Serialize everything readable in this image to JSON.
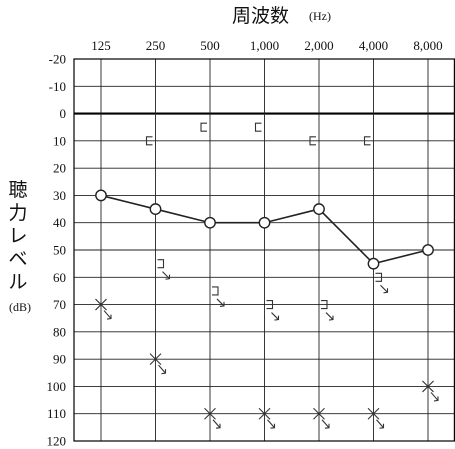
{
  "chart_data": {
    "type": "line",
    "title": "周波数",
    "title_unit": "(Hz)",
    "ylabel": [
      "聴",
      "力",
      "レ",
      "ベ",
      "ル"
    ],
    "ylabel_unit": "(dB)",
    "x_tick_labels": [
      "125",
      "250",
      "500",
      "1,000",
      "2,000",
      "4,000",
      "8,000"
    ],
    "y_ticks": [
      -20,
      -10,
      0,
      10,
      20,
      30,
      40,
      50,
      60,
      70,
      80,
      90,
      100,
      110,
      120
    ],
    "ylim": [
      -20,
      120
    ],
    "y_inverted": true,
    "grid": true,
    "series": [
      {
        "symbol": "circle-o",
        "connected": true,
        "x": [
          "125",
          "250",
          "500",
          "1,000",
          "2,000",
          "4,000",
          "8,000"
        ],
        "values": [
          30,
          35,
          40,
          40,
          35,
          55,
          50
        ]
      },
      {
        "symbol": "x-arrow",
        "connected": false,
        "x": [
          "125",
          "250",
          "500",
          "1,000",
          "2,000",
          "4,000",
          "8,000"
        ],
        "values": [
          70,
          90,
          110,
          110,
          110,
          110,
          100
        ]
      },
      {
        "symbol": "bracket-open-left",
        "connected": false,
        "x": [
          "250",
          "500",
          "1,000",
          "2,000",
          "4,000"
        ],
        "values": [
          10,
          5,
          5,
          10,
          10
        ]
      },
      {
        "symbol": "bracket-close-arrow",
        "connected": false,
        "x": [
          "250",
          "500",
          "1,000",
          "2,000",
          "4,000"
        ],
        "values": [
          55,
          65,
          70,
          70,
          60
        ]
      }
    ]
  }
}
